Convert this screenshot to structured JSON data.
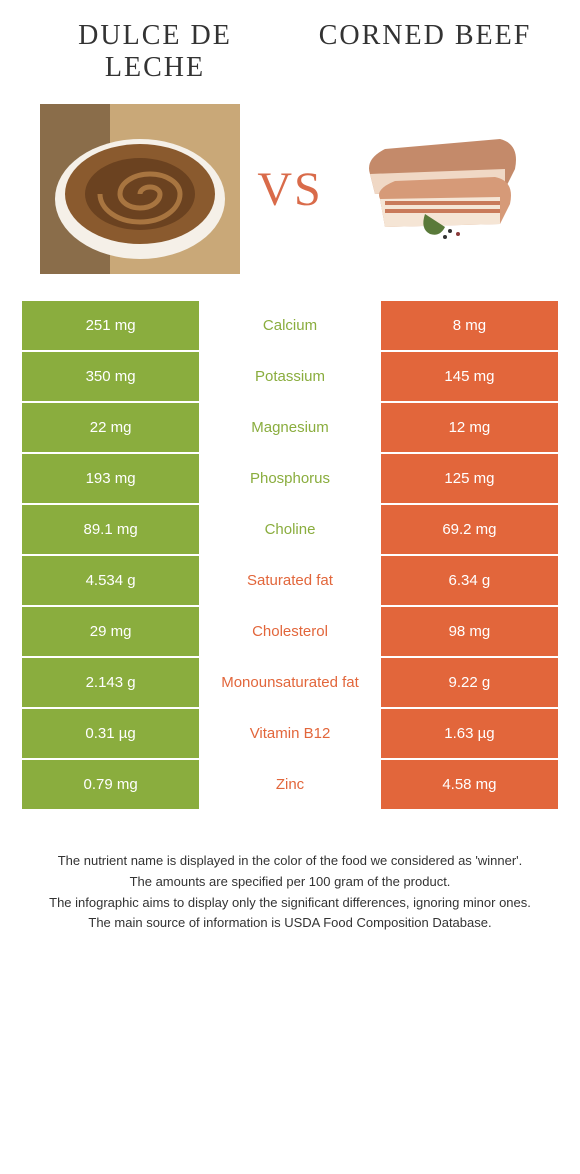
{
  "header": {
    "left_title": "DULCE DE LECHE",
    "right_title": "CORNED BEEF",
    "vs_label": "VS"
  },
  "colors": {
    "left_bg": "#8aad3e",
    "right_bg": "#e2663b",
    "page_bg": "#ffffff",
    "title_color": "#333333"
  },
  "rows": [
    {
      "left": "251 mg",
      "label": "Calcium",
      "right": "8 mg",
      "winner": "left"
    },
    {
      "left": "350 mg",
      "label": "Potassium",
      "right": "145 mg",
      "winner": "left"
    },
    {
      "left": "22 mg",
      "label": "Magnesium",
      "right": "12 mg",
      "winner": "left"
    },
    {
      "left": "193 mg",
      "label": "Phosphorus",
      "right": "125 mg",
      "winner": "left"
    },
    {
      "left": "89.1 mg",
      "label": "Choline",
      "right": "69.2 mg",
      "winner": "left"
    },
    {
      "left": "4.534 g",
      "label": "Saturated fat",
      "right": "6.34 g",
      "winner": "right"
    },
    {
      "left": "29 mg",
      "label": "Cholesterol",
      "right": "98 mg",
      "winner": "right"
    },
    {
      "left": "2.143 g",
      "label": "Monounsaturated fat",
      "right": "9.22 g",
      "winner": "right"
    },
    {
      "left": "0.31 µg",
      "label": "Vitamin B12",
      "right": "1.63 µg",
      "winner": "right"
    },
    {
      "left": "0.79 mg",
      "label": "Zinc",
      "right": "4.58 mg",
      "winner": "right"
    }
  ],
  "footer": {
    "line1": "The nutrient name is displayed in the color of the food we considered as 'winner'.",
    "line2": "The amounts are specified per 100 gram of the product.",
    "line3": "The infographic aims to display only the significant differences, ignoring minor ones.",
    "line4": "The main source of information is USDA Food Composition Database."
  }
}
